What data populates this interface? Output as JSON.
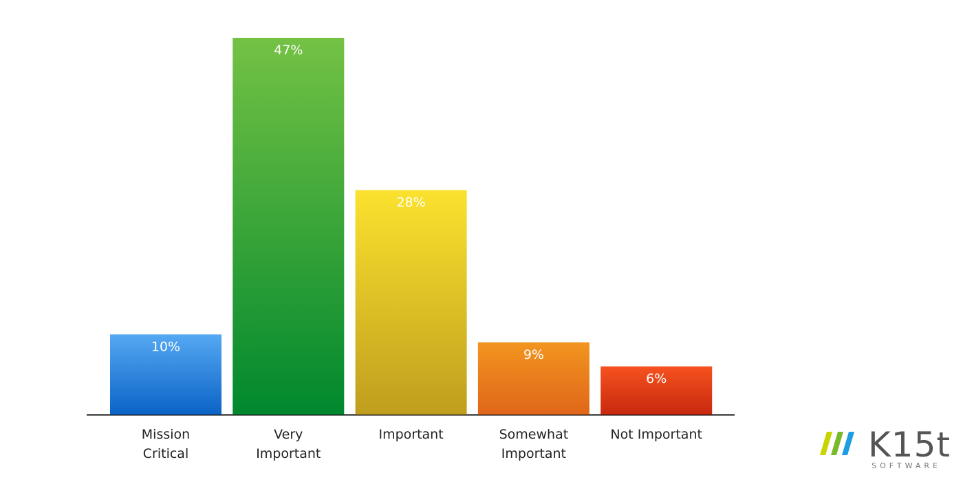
{
  "chart_data": {
    "type": "bar",
    "categories": [
      "Mission Critical",
      "Very Important",
      "Important",
      "Somewhat Important",
      "Not Important"
    ],
    "values": [
      10,
      47,
      28,
      9,
      6
    ],
    "value_labels": [
      "10%",
      "47%",
      "28%",
      "9%",
      "6%"
    ],
    "colors": [
      [
        "#55a8f2",
        "#0b63c6"
      ],
      [
        "#74c244",
        "#00882e"
      ],
      [
        "#fbe22e",
        "#bf9e1e"
      ],
      [
        "#f2951f",
        "#e0661a"
      ],
      [
        "#f6521f",
        "#c8280e"
      ]
    ]
  },
  "logo": {
    "name": "K15t",
    "tagline": "SOFTWARE"
  }
}
